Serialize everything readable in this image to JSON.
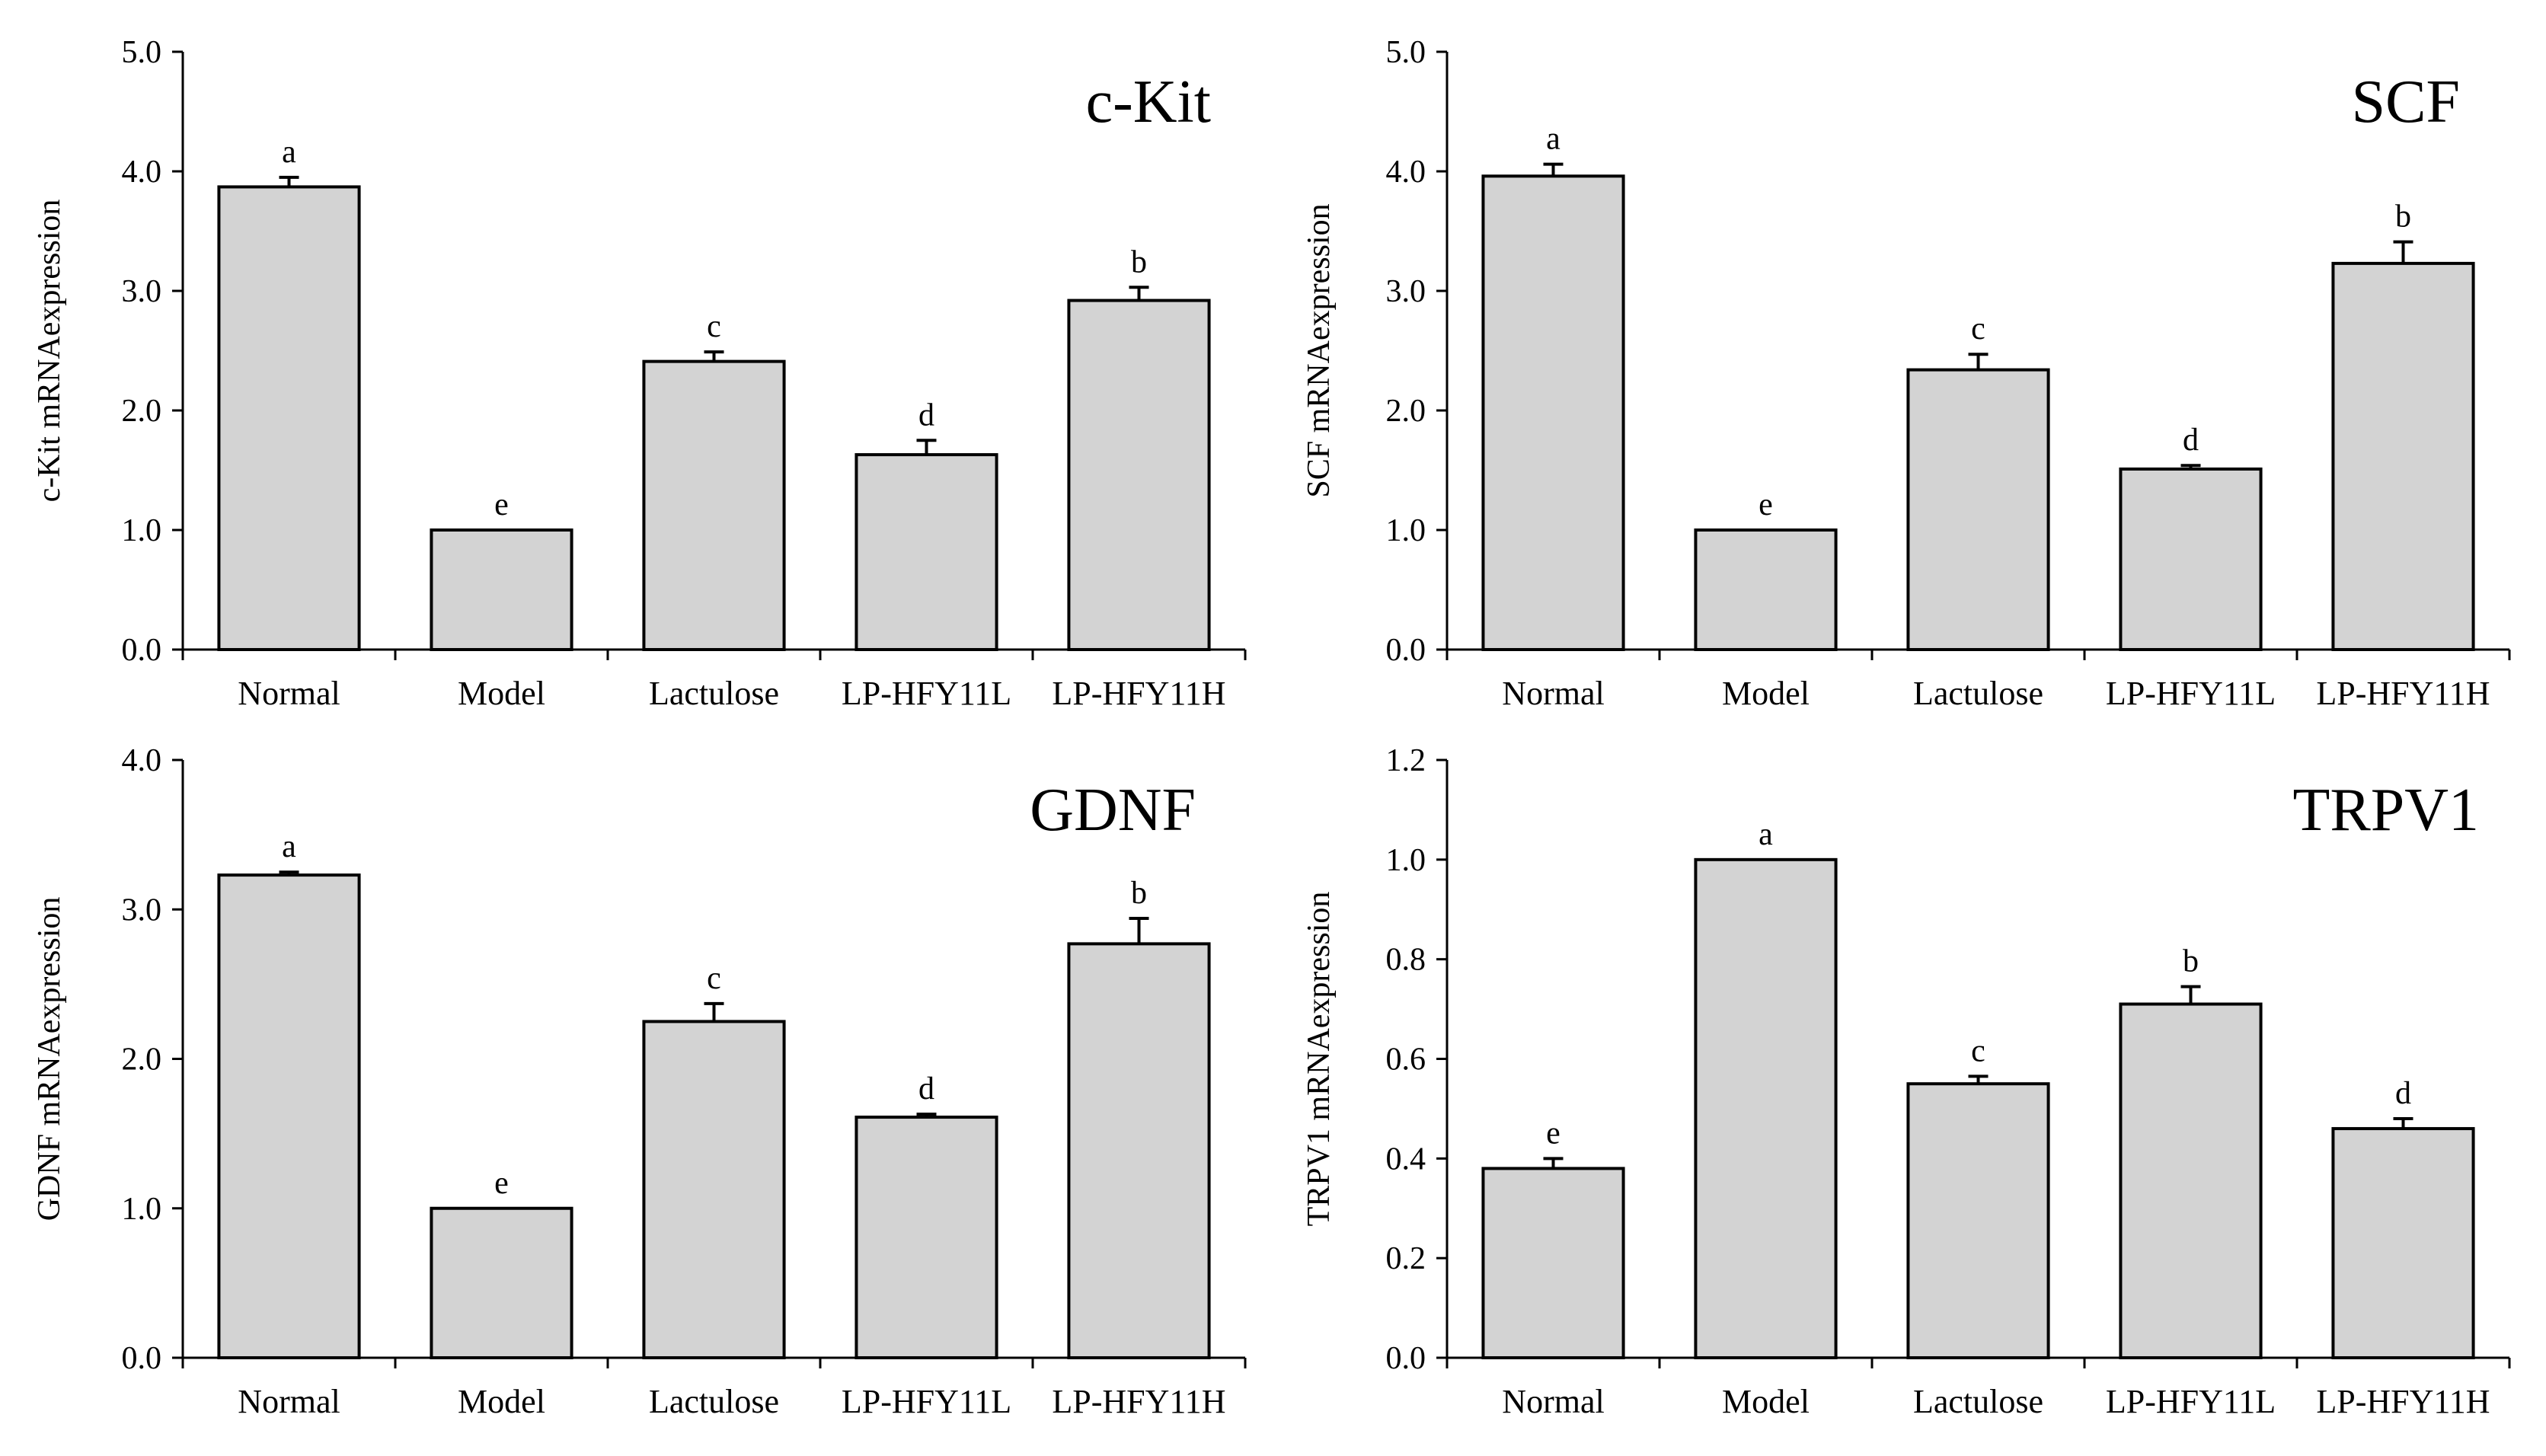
{
  "chart_data": [
    {
      "type": "bar",
      "title": "c-Kit",
      "ylabel": "c-Kit mRNAexpression",
      "xlabel": "",
      "categories": [
        "Normal",
        "Model",
        "Lactulose",
        "LP-HFY11L",
        "LP-HFY11H"
      ],
      "values": [
        3.87,
        1.0,
        2.41,
        1.63,
        2.92
      ],
      "errors": [
        0.08,
        0.0,
        0.08,
        0.12,
        0.11
      ],
      "significance": [
        "a",
        "e",
        "c",
        "d",
        "b"
      ],
      "ylim": [
        0.0,
        5.0
      ],
      "yticks": [
        "0.0",
        "1.0",
        "2.0",
        "3.0",
        "4.0",
        "5.0"
      ],
      "bar_color": "#d3d3d3"
    },
    {
      "type": "bar",
      "title": "SCF",
      "ylabel": "SCF mRNAexpression",
      "xlabel": "",
      "categories": [
        "Normal",
        "Model",
        "Lactulose",
        "LP-HFY11L",
        "LP-HFY11H"
      ],
      "values": [
        3.96,
        1.0,
        2.34,
        1.51,
        3.23
      ],
      "errors": [
        0.1,
        0.0,
        0.13,
        0.03,
        0.18
      ],
      "significance": [
        "a",
        "e",
        "c",
        "d",
        "b"
      ],
      "ylim": [
        0.0,
        5.0
      ],
      "yticks": [
        "0.0",
        "1.0",
        "2.0",
        "3.0",
        "4.0",
        "5.0"
      ],
      "bar_color": "#d3d3d3"
    },
    {
      "type": "bar",
      "title": "GDNF",
      "ylabel": "GDNF mRNAexpression",
      "xlabel": "",
      "categories": [
        "Normal",
        "Model",
        "Lactulose",
        "LP-HFY11L",
        "LP-HFY11H"
      ],
      "values": [
        3.23,
        1.0,
        2.25,
        1.61,
        2.77
      ],
      "errors": [
        0.02,
        0.0,
        0.12,
        0.02,
        0.17
      ],
      "significance": [
        "a",
        "e",
        "c",
        "d",
        "b"
      ],
      "ylim": [
        0.0,
        4.0
      ],
      "yticks": [
        "0.0",
        "1.0",
        "2.0",
        "3.0",
        "4.0"
      ],
      "bar_color": "#d3d3d3"
    },
    {
      "type": "bar",
      "title": "TRPV1",
      "ylabel": "TRPV1 mRNAexpression",
      "xlabel": "",
      "categories": [
        "Normal",
        "Model",
        "Lactulose",
        "LP-HFY11L",
        "LP-HFY11H"
      ],
      "values": [
        0.38,
        1.0,
        0.55,
        0.71,
        0.46
      ],
      "errors": [
        0.02,
        0.0,
        0.015,
        0.035,
        0.02
      ],
      "significance": [
        "e",
        "a",
        "c",
        "b",
        "d"
      ],
      "ylim": [
        0.0,
        1.2
      ],
      "yticks": [
        "0.0",
        "0.2",
        "0.4",
        "0.6",
        "0.8",
        "1.0",
        "1.2"
      ],
      "bar_color": "#d3d3d3"
    }
  ]
}
